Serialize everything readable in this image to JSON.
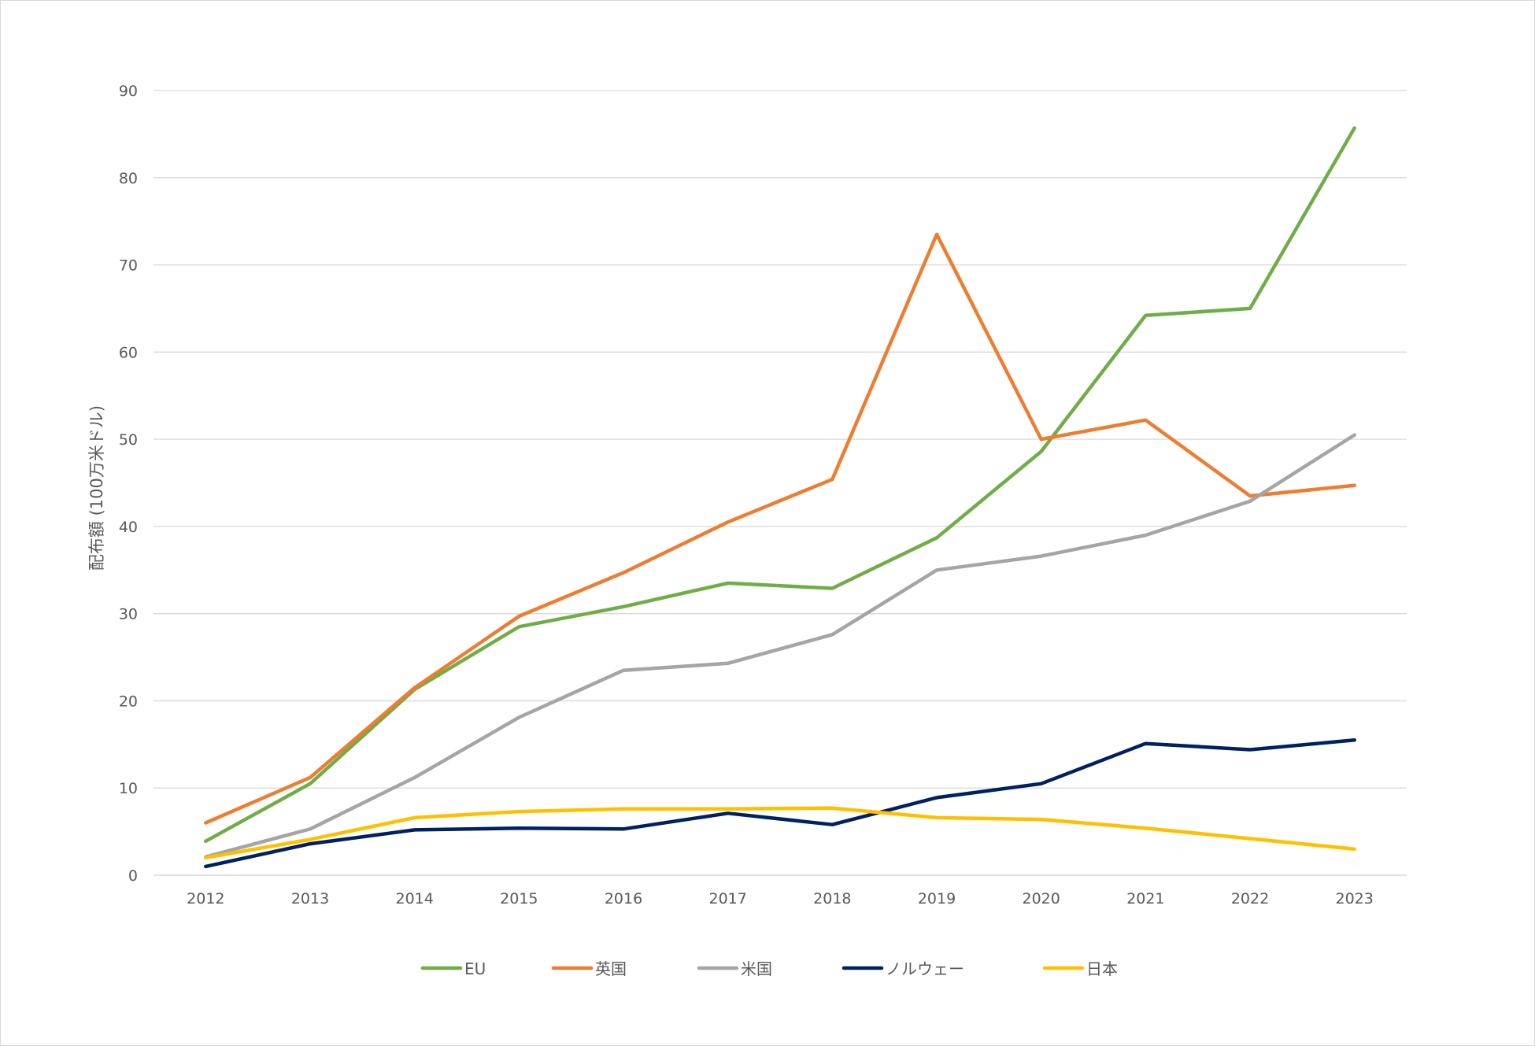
{
  "chart_data": {
    "type": "line",
    "title": "",
    "xlabel": "",
    "ylabel": "配布額 (100万米ドル)",
    "categories": [
      "2012",
      "2013",
      "2014",
      "2015",
      "2016",
      "2017",
      "2018",
      "2019",
      "2020",
      "2021",
      "2022",
      "2023"
    ],
    "ylim": [
      0,
      90
    ],
    "yticks": [
      0,
      10,
      20,
      30,
      40,
      50,
      60,
      70,
      80,
      90
    ],
    "grid": true,
    "legend_position": "bottom",
    "series": [
      {
        "name": "EU",
        "color": "#70ad47",
        "values": [
          3.9,
          10.5,
          21.3,
          28.5,
          30.8,
          33.5,
          32.9,
          38.7,
          48.6,
          64.2,
          65.0,
          85.7
        ]
      },
      {
        "name": "英国",
        "color": "#ed7d31",
        "values": [
          6.0,
          11.2,
          21.5,
          29.7,
          34.7,
          40.5,
          45.4,
          73.5,
          50.0,
          52.2,
          43.5,
          44.7
        ]
      },
      {
        "name": "米国",
        "color": "#a5a5a5",
        "values": [
          2.1,
          5.3,
          11.2,
          18.1,
          23.5,
          24.3,
          27.6,
          35.0,
          36.6,
          39.0,
          42.9,
          50.5
        ]
      },
      {
        "name": "ノルウェー",
        "color": "#002060",
        "values": [
          1.0,
          3.6,
          5.2,
          5.4,
          5.3,
          7.1,
          5.8,
          8.9,
          10.5,
          15.1,
          14.4,
          15.5
        ]
      },
      {
        "name": "日本",
        "color": "#ffc000",
        "values": [
          2.0,
          4.1,
          6.6,
          7.3,
          7.6,
          7.6,
          7.7,
          6.6,
          6.4,
          5.4,
          4.2,
          3.0
        ]
      }
    ]
  }
}
